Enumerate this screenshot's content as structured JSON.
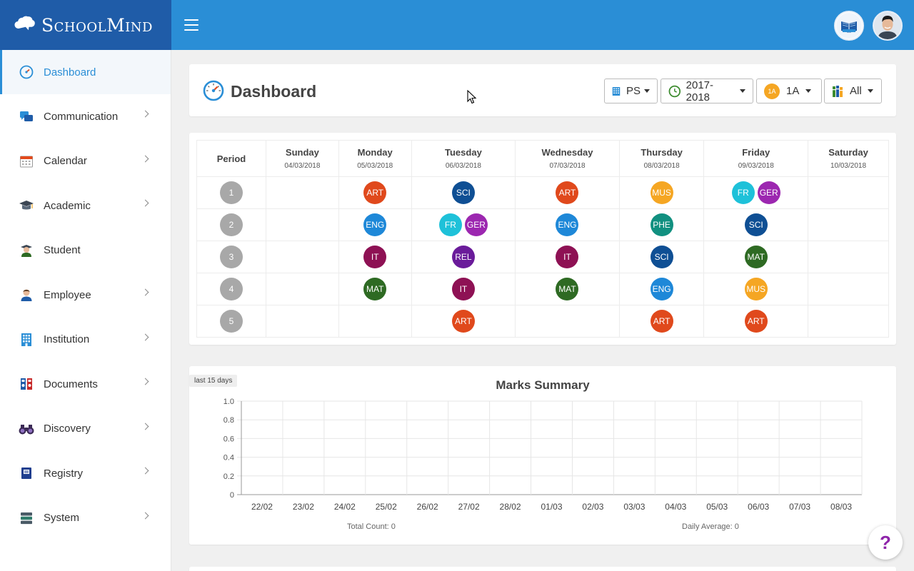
{
  "brand": {
    "name": "SchoolMind"
  },
  "sidebar": {
    "items": [
      {
        "label": "Dashboard",
        "icon": "gauge-icon",
        "active": true,
        "chevron": false
      },
      {
        "label": "Communication",
        "icon": "chat-bubbles-icon",
        "chevron": true
      },
      {
        "label": "Calendar",
        "icon": "calendar-icon",
        "chevron": true
      },
      {
        "label": "Academic",
        "icon": "graduation-cap-icon",
        "chevron": true
      },
      {
        "label": "Student",
        "icon": "student-icon",
        "chevron": false
      },
      {
        "label": "Employee",
        "icon": "employee-icon",
        "chevron": true
      },
      {
        "label": "Institution",
        "icon": "building-icon",
        "chevron": true
      },
      {
        "label": "Documents",
        "icon": "binders-icon",
        "chevron": true
      },
      {
        "label": "Discovery",
        "icon": "binoculars-icon",
        "chevron": true
      },
      {
        "label": "Registry",
        "icon": "registry-book-icon",
        "chevron": true
      },
      {
        "label": "System",
        "icon": "server-stack-icon",
        "chevron": true
      }
    ]
  },
  "header": {
    "title": "Dashboard",
    "filters": {
      "school": "PS",
      "year": "2017-2018",
      "class_badge": "1A",
      "class": "1A",
      "subject": "All"
    }
  },
  "timetable": {
    "period_header": "Period",
    "days": [
      {
        "name": "Sunday",
        "date": "04/03/2018"
      },
      {
        "name": "Monday",
        "date": "05/03/2018"
      },
      {
        "name": "Tuesday",
        "date": "06/03/2018"
      },
      {
        "name": "Wednesday",
        "date": "07/03/2018"
      },
      {
        "name": "Thursday",
        "date": "08/03/2018"
      },
      {
        "name": "Friday",
        "date": "09/03/2018"
      },
      {
        "name": "Saturday",
        "date": "10/03/2018"
      }
    ],
    "rows": [
      {
        "period": "1",
        "cells": [
          [],
          [
            "ART"
          ],
          [
            "SCI"
          ],
          [
            "ART"
          ],
          [
            "MUS"
          ],
          [
            "FR",
            "GER"
          ],
          []
        ]
      },
      {
        "period": "2",
        "cells": [
          [],
          [
            "ENG"
          ],
          [
            "FR",
            "GER"
          ],
          [
            "ENG"
          ],
          [
            "PHE"
          ],
          [
            "SCI"
          ],
          []
        ]
      },
      {
        "period": "3",
        "cells": [
          [],
          [
            "IT"
          ],
          [
            "REL"
          ],
          [
            "IT"
          ],
          [
            "SCI"
          ],
          [
            "MAT"
          ],
          []
        ]
      },
      {
        "period": "4",
        "cells": [
          [],
          [
            "MAT"
          ],
          [
            "IT"
          ],
          [
            "MAT"
          ],
          [
            "ENG"
          ],
          [
            "MUS"
          ],
          []
        ]
      },
      {
        "period": "5",
        "cells": [
          [],
          [],
          [
            "ART"
          ],
          [],
          [
            "ART"
          ],
          [
            "ART"
          ],
          []
        ]
      }
    ],
    "subject_colors": {
      "ART": "#e0491c",
      "SCI": "#0f4f94",
      "MUS": "#f5a623",
      "FR": "#1ec1d9",
      "GER": "#9c27b0",
      "ENG": "#1e88d8",
      "PHE": "#119080",
      "IT": "#8e1154",
      "REL": "#6a1b9a",
      "MAT": "#2e6a23"
    }
  },
  "marks_summary": {
    "tag": "last 15 days",
    "total_count_label": "Total Count: 0",
    "daily_average_label": "Daily Average: 0"
  },
  "chart_data": {
    "type": "line",
    "title": "Marks Summary",
    "categories": [
      "22/02",
      "23/02",
      "24/02",
      "25/02",
      "26/02",
      "27/02",
      "28/02",
      "01/03",
      "02/03",
      "03/03",
      "04/03",
      "05/03",
      "06/03",
      "07/03",
      "08/03"
    ],
    "series": [],
    "yticks": [
      "0",
      "0.2",
      "0.4",
      "0.6",
      "0.8",
      "1.0"
    ],
    "ylim": [
      0,
      1.0
    ],
    "grid": true
  },
  "help": {
    "label": "?"
  },
  "colors": {
    "brand": "#1f5ca8",
    "topbar": "#2a8ed6",
    "accent": "#2a8ed6",
    "period": "#a8a8a8"
  }
}
